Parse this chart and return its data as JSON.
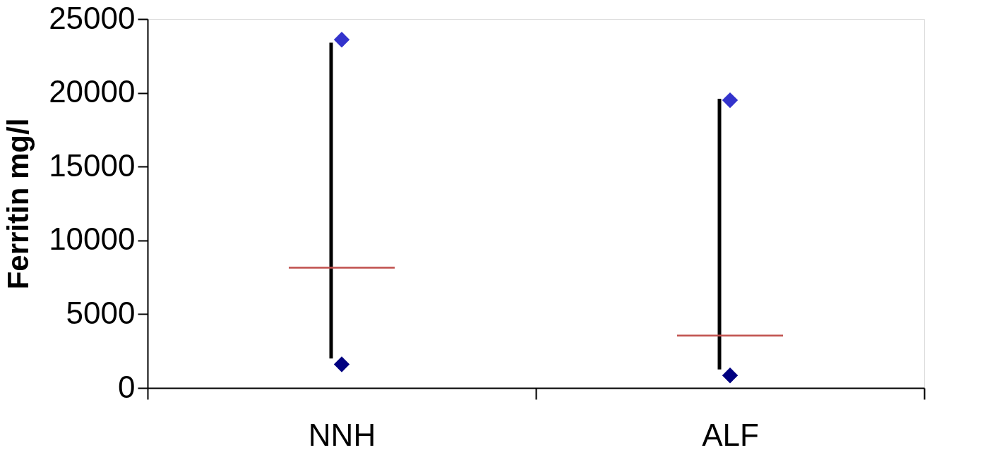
{
  "chart_data": {
    "type": "box",
    "ylabel": "Ferritin mg/l",
    "categories": [
      "NNH",
      "ALF"
    ],
    "ylim": [
      0,
      25000
    ],
    "yticks": [
      0,
      5000,
      10000,
      15000,
      20000,
      25000
    ],
    "grid": false,
    "series": [
      {
        "color": "#c0504d",
        "boxes": [
          {
            "low": 2000,
            "q1": 8150,
            "median": 8150,
            "q3": 8150,
            "high": 23400
          },
          {
            "low": 1250,
            "q1": 3550,
            "median": 3550,
            "q3": 3550,
            "high": 19600
          }
        ]
      },
      {
        "type": "scatter",
        "marker": "diamond",
        "x": [
          "NNH",
          "ALF"
        ],
        "values": [
          23600,
          19500
        ],
        "color": "#3333cc"
      },
      {
        "type": "scatter",
        "marker": "diamond",
        "x": [
          "NNH",
          "ALF"
        ],
        "values": [
          1600,
          850
        ],
        "color": "#000080"
      }
    ]
  }
}
